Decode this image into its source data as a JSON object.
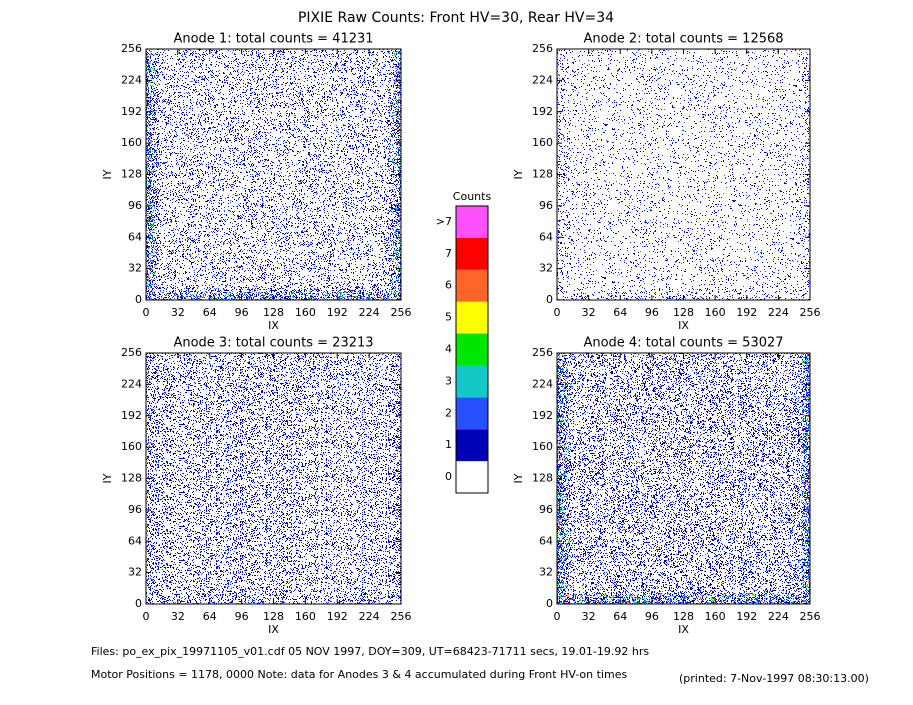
{
  "title": "PIXIE Raw Counts:  Front HV=30, Rear HV=34",
  "chart_data": [
    {
      "type": "heatmap",
      "title": "Anode 1: total counts = 41231",
      "x_label": "IX",
      "y_label": "IY",
      "xlim": [
        0,
        256
      ],
      "ylim": [
        0,
        256
      ],
      "xticks": [
        0,
        32,
        64,
        96,
        128,
        160,
        192,
        224,
        256
      ],
      "yticks": [
        0,
        32,
        64,
        96,
        128,
        160,
        192,
        224,
        256
      ]
    },
    {
      "type": "heatmap",
      "title": "Anode 2: total counts = 12568",
      "x_label": "IX",
      "y_label": "IY",
      "xlim": [
        0,
        256
      ],
      "ylim": [
        0,
        256
      ],
      "xticks": [
        0,
        32,
        64,
        96,
        128,
        160,
        192,
        224,
        256
      ],
      "yticks": [
        0,
        32,
        64,
        96,
        128,
        160,
        192,
        224,
        256
      ]
    },
    {
      "type": "heatmap",
      "title": "Anode 3: total counts = 23213",
      "x_label": "IX",
      "y_label": "IY",
      "xlim": [
        0,
        256
      ],
      "ylim": [
        0,
        256
      ],
      "xticks": [
        0,
        32,
        64,
        96,
        128,
        160,
        192,
        224,
        256
      ],
      "yticks": [
        0,
        32,
        64,
        96,
        128,
        160,
        192,
        224,
        256
      ]
    },
    {
      "type": "heatmap",
      "title": "Anode 4: total counts = 53027",
      "x_label": "IX",
      "y_label": "IY",
      "xlim": [
        0,
        256
      ],
      "ylim": [
        0,
        256
      ],
      "xticks": [
        0,
        32,
        64,
        96,
        128,
        160,
        192,
        224,
        256
      ],
      "yticks": [
        0,
        32,
        64,
        96,
        128,
        160,
        192,
        224,
        256
      ]
    }
  ],
  "colorbar": {
    "title": "Counts",
    "labels": [
      "0",
      "1",
      "2",
      "3",
      "4",
      "5",
      "6",
      "7",
      ">7"
    ],
    "colors": [
      "#ffffff",
      "#0000b4",
      "#2850ff",
      "#14c8c8",
      "#00e600",
      "#ffff00",
      "#ff6428",
      "#ff0000",
      "#ff50ff"
    ]
  },
  "footer": {
    "files": "Files: po_ex_pix_19971105_v01.cdf    05 NOV 1997, DOY=309, UT=68423-71711 secs, 19.01-19.92 hrs",
    "motor": "Motor Positions = 1178, 0000    Note: data for Anodes 3 & 4 accumulated during Front HV-on times",
    "printed": "(printed:  7-Nov-1997 08:30:13.00)"
  }
}
